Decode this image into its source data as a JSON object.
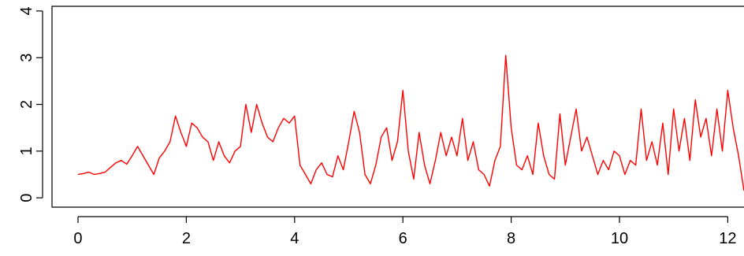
{
  "chart_data": {
    "type": "line",
    "title": "",
    "xlabel": "",
    "ylabel": "",
    "xlim": [
      -0.48,
      12.3
    ],
    "ylim": [
      -0.2,
      4.1
    ],
    "x_ticks": [
      0,
      2,
      4,
      6,
      8,
      10,
      12
    ],
    "y_ticks": [
      0,
      1,
      2,
      3,
      4
    ],
    "grid": false,
    "legend": "none",
    "line_color": "#ff0000",
    "series": [
      {
        "x": [
          0.0,
          0.1,
          0.2,
          0.3,
          0.4,
          0.5,
          0.6,
          0.7,
          0.8,
          0.9,
          1.0,
          1.1,
          1.2,
          1.3,
          1.4,
          1.5,
          1.6,
          1.7,
          1.8,
          1.9,
          2.0,
          2.1,
          2.2,
          2.3,
          2.4,
          2.5,
          2.6,
          2.7,
          2.8,
          2.9,
          3.0,
          3.1,
          3.2,
          3.3,
          3.4,
          3.5,
          3.6,
          3.7,
          3.8,
          3.9,
          4.0,
          4.1,
          4.2,
          4.3,
          4.4,
          4.5,
          4.6,
          4.7,
          4.8,
          4.9,
          5.0,
          5.1,
          5.2,
          5.3,
          5.4,
          5.5,
          5.6,
          5.7,
          5.8,
          5.9,
          6.0,
          6.1,
          6.2,
          6.3,
          6.4,
          6.5,
          6.6,
          6.7,
          6.8,
          6.9,
          7.0,
          7.1,
          7.2,
          7.3,
          7.4,
          7.5,
          7.6,
          7.7,
          7.8,
          7.9,
          8.0,
          8.1,
          8.2,
          8.3,
          8.4,
          8.5,
          8.6,
          8.7,
          8.8,
          8.9,
          9.0,
          9.1,
          9.2,
          9.3,
          9.4,
          9.5,
          9.6,
          9.7,
          9.8,
          9.9,
          10.0,
          10.1,
          10.2,
          10.3,
          10.4,
          10.5,
          10.6,
          10.7,
          10.8,
          10.9,
          11.0,
          11.1,
          11.2,
          11.3,
          11.4,
          11.5,
          11.6,
          11.7,
          11.8,
          11.9,
          12.0,
          12.1,
          12.2,
          12.3
        ],
        "y": [
          0.5,
          0.52,
          0.55,
          0.5,
          0.52,
          0.55,
          0.65,
          0.75,
          0.8,
          0.72,
          0.9,
          1.1,
          0.9,
          0.7,
          0.5,
          0.85,
          1.0,
          1.2,
          1.75,
          1.4,
          1.1,
          1.6,
          1.5,
          1.3,
          1.2,
          0.8,
          1.2,
          0.9,
          0.75,
          1.0,
          1.1,
          2.0,
          1.4,
          2.0,
          1.6,
          1.3,
          1.2,
          1.5,
          1.7,
          1.6,
          1.75,
          0.7,
          0.5,
          0.3,
          0.6,
          0.75,
          0.5,
          0.45,
          0.9,
          0.6,
          1.2,
          1.85,
          1.4,
          0.5,
          0.3,
          0.7,
          1.3,
          1.5,
          0.8,
          1.2,
          2.3,
          1.0,
          0.4,
          1.4,
          0.7,
          0.3,
          0.8,
          1.4,
          0.9,
          1.3,
          0.9,
          1.7,
          0.8,
          1.2,
          0.6,
          0.5,
          0.25,
          0.8,
          1.1,
          3.05,
          1.5,
          0.7,
          0.6,
          0.9,
          0.5,
          1.6,
          0.9,
          0.5,
          0.4,
          1.8,
          0.7,
          1.3,
          1.9,
          1.0,
          1.3,
          0.9,
          0.5,
          0.8,
          0.6,
          1.0,
          0.9,
          0.5,
          0.8,
          0.7,
          1.9,
          0.8,
          1.2,
          0.7,
          1.6,
          0.5,
          1.9,
          1.0,
          1.7,
          0.8,
          2.1,
          1.3,
          1.7,
          0.9,
          1.9,
          1.0,
          2.3,
          1.5,
          0.9,
          0.15
        ]
      }
    ]
  }
}
